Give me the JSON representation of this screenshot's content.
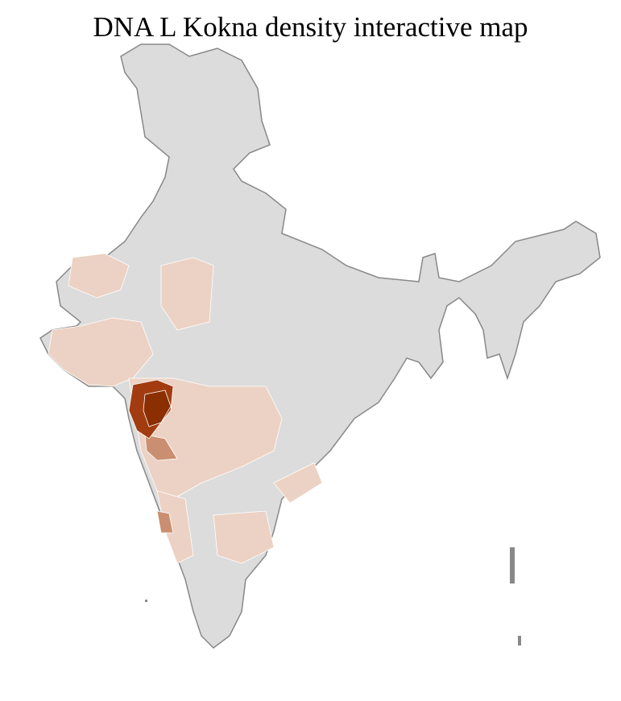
{
  "title": "DNA L Kokna density interactive map",
  "colors": {
    "no_data": "#dcdcdc",
    "border": "#888888",
    "district_border": "#ffffff",
    "low": "#ecd2c4",
    "medium": "#c98f70",
    "high": "#a23c10",
    "highest": "#8b2e00"
  },
  "highlighted_regions": [
    {
      "density": "highest"
    },
    {
      "density": "high"
    },
    {
      "density": "medium"
    },
    {
      "density": "low"
    }
  ]
}
